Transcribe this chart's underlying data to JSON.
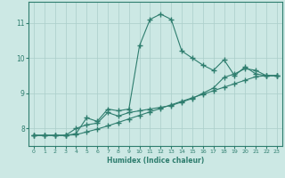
{
  "xlabel": "Humidex (Indice chaleur)",
  "bg_color": "#cce8e4",
  "line_color": "#2e7d6e",
  "grid_color": "#aaceca",
  "xlim": [
    -0.5,
    23.5
  ],
  "ylim": [
    7.5,
    11.6
  ],
  "xticks": [
    0,
    1,
    2,
    3,
    4,
    5,
    6,
    7,
    8,
    9,
    10,
    11,
    12,
    13,
    14,
    15,
    16,
    17,
    18,
    19,
    20,
    21,
    22,
    23
  ],
  "yticks": [
    8,
    9,
    10,
    11
  ],
  "curve1_x": [
    0,
    1,
    2,
    3,
    4,
    5,
    6,
    7,
    8,
    9,
    10,
    11,
    12,
    13,
    14,
    15,
    16,
    17,
    18,
    19,
    20,
    21,
    22,
    23
  ],
  "curve1_y": [
    7.8,
    7.8,
    7.8,
    7.8,
    7.85,
    8.3,
    8.2,
    8.55,
    8.5,
    8.55,
    10.35,
    11.1,
    11.25,
    11.1,
    10.2,
    10.0,
    9.8,
    9.65,
    9.95,
    9.5,
    9.75,
    9.55,
    9.5,
    9.5
  ],
  "curve2_x": [
    0,
    1,
    2,
    3,
    4,
    5,
    6,
    7,
    8,
    9,
    10,
    11,
    12,
    13,
    14,
    15,
    16,
    17,
    18,
    19,
    20,
    21,
    22,
    23
  ],
  "curve2_y": [
    7.8,
    7.8,
    7.8,
    7.8,
    8.0,
    8.1,
    8.15,
    8.45,
    8.35,
    8.45,
    8.5,
    8.55,
    8.6,
    8.65,
    8.75,
    8.85,
    9.0,
    9.15,
    9.45,
    9.55,
    9.7,
    9.65,
    9.5,
    9.5
  ],
  "curve3_x": [
    0,
    1,
    2,
    3,
    4,
    5,
    6,
    7,
    8,
    9,
    10,
    11,
    12,
    13,
    14,
    15,
    16,
    17,
    18,
    19,
    20,
    21,
    22,
    23
  ],
  "curve3_y": [
    7.8,
    7.8,
    7.8,
    7.8,
    7.82,
    7.9,
    7.98,
    8.07,
    8.17,
    8.27,
    8.37,
    8.47,
    8.57,
    8.67,
    8.77,
    8.87,
    8.97,
    9.07,
    9.17,
    9.27,
    9.37,
    9.47,
    9.5,
    9.5
  ]
}
